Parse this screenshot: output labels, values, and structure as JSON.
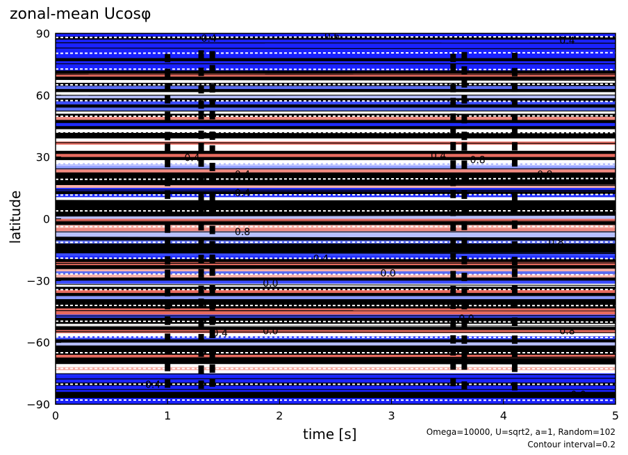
{
  "chart_data": {
    "type": "heatmap",
    "title": "zonal-mean Ucosφ",
    "xlabel": "time [s]",
    "ylabel": "latitude",
    "xlim": [
      0,
      5
    ],
    "ylim": [
      -90,
      90
    ],
    "x_ticks": [
      "0",
      "1",
      "2",
      "3",
      "4",
      "5"
    ],
    "y_ticks": [
      "90",
      "60",
      "30",
      "0",
      "−30",
      "−60",
      "−90"
    ],
    "contour_interval": 0.2,
    "contour_labels": [
      {
        "x": 1.15,
        "lat": 28,
        "text": "0.4"
      },
      {
        "x": 1.6,
        "lat": 20,
        "text": "0.4"
      },
      {
        "x": 3.35,
        "lat": 29,
        "text": "0.4"
      },
      {
        "x": 3.7,
        "lat": 27,
        "text": "0.8"
      },
      {
        "x": 4.3,
        "lat": 20,
        "text": "0.8"
      },
      {
        "x": 1.6,
        "lat": 11,
        "text": "0.4"
      },
      {
        "x": 1.6,
        "lat": -8,
        "text": "0.8"
      },
      {
        "x": 2.3,
        "lat": -21,
        "text": "0.4"
      },
      {
        "x": 2.9,
        "lat": -28,
        "text": "0.0"
      },
      {
        "x": 1.85,
        "lat": -33,
        "text": "0.0"
      },
      {
        "x": 4.4,
        "lat": -13,
        "text": "0.8"
      },
      {
        "x": 3.6,
        "lat": -50,
        "text": "0.0"
      },
      {
        "x": 1.85,
        "lat": -56,
        "text": "0.0"
      },
      {
        "x": 1.4,
        "lat": -57,
        "text": "0.4"
      },
      {
        "x": 4.5,
        "lat": -56,
        "text": "0.8"
      },
      {
        "x": 0.8,
        "lat": -82,
        "text": "0.4"
      },
      {
        "x": 4.6,
        "lat": -87,
        "text": "0.0"
      },
      {
        "x": 1.3,
        "lat": 86,
        "text": "0.4"
      },
      {
        "x": 2.4,
        "lat": 87,
        "text": "0.6"
      },
      {
        "x": 4.5,
        "lat": 85,
        "text": "0.4"
      }
    ]
  },
  "footer": {
    "params": "Omega=10000, U=sqrt2, a=1, Random=102",
    "contour_interval_text": "Contour interval=0.2"
  }
}
